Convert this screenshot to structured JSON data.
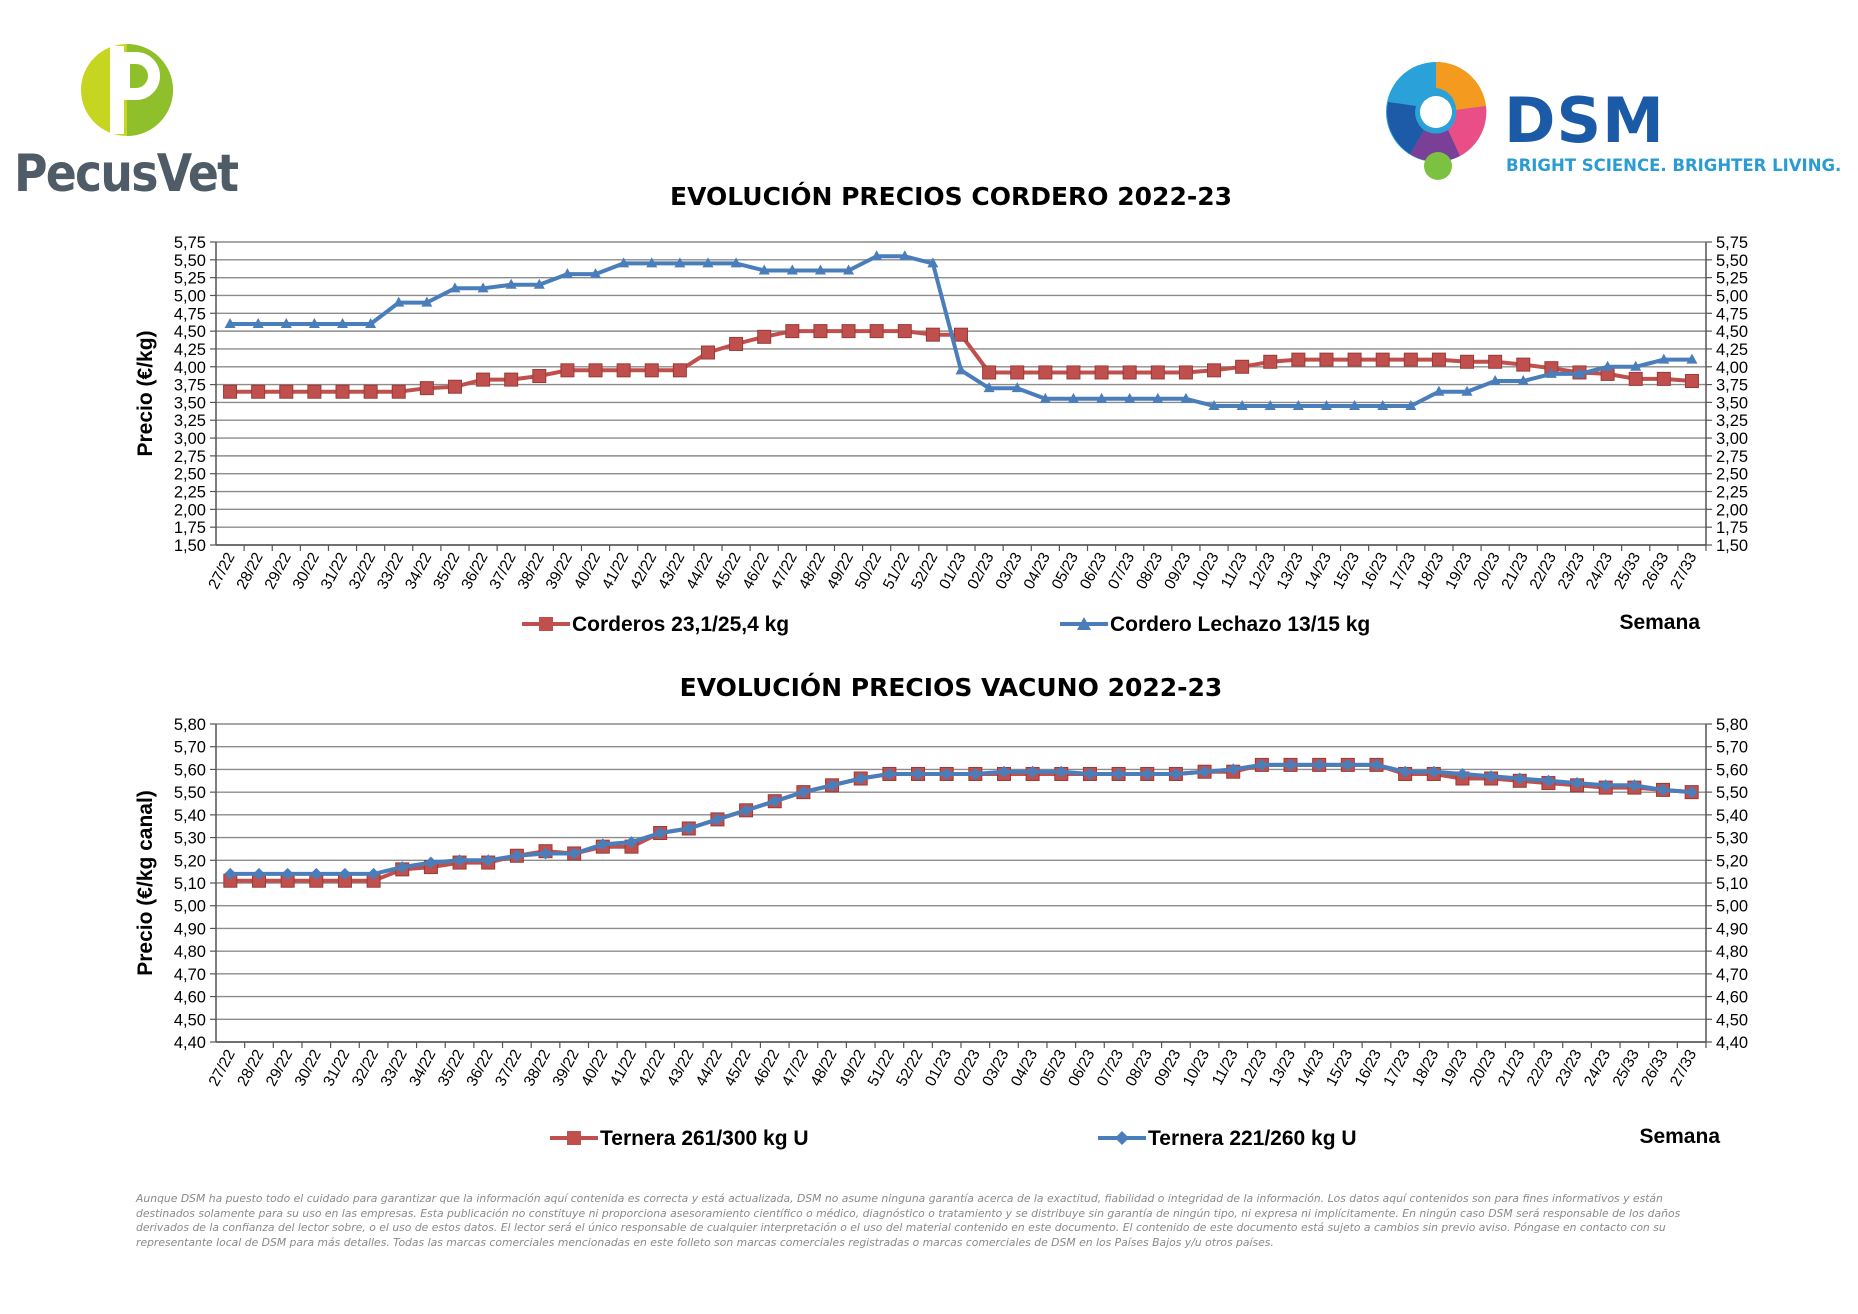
{
  "logos": {
    "left_text": "PecusVet",
    "right_name": "DSM",
    "right_tagline": "BRIGHT SCIENCE. BRIGHTER LIVING."
  },
  "colors": {
    "red_series": "#c0504d",
    "blue_series": "#4a7ebb",
    "grid": "#7f7f7f",
    "text": "#000000"
  },
  "chart_data": [
    {
      "type": "line",
      "title": "EVOLUCIÓN PRECIOS CORDERO 2022-23",
      "ylabel": "Precio (€/kg)",
      "xlabel": "Semana",
      "ylim": [
        1.5,
        5.75
      ],
      "ytick_step": 0.25,
      "yticks": [
        "5,75",
        "5,50",
        "5,25",
        "5,00",
        "4,75",
        "4,50",
        "4,25",
        "4,00",
        "3,75",
        "3,50",
        "3,25",
        "3,00",
        "2,75",
        "2,50",
        "2,25",
        "2,00",
        "1,75",
        "1,50"
      ],
      "grid": true,
      "legend": "bottom",
      "categories": [
        "27/22",
        "28/22",
        "29/22",
        "30/22",
        "31/22",
        "32/22",
        "33/22",
        "34/22",
        "35/22",
        "36/22",
        "37/22",
        "38/22",
        "39/22",
        "40/22",
        "41/22",
        "42/22",
        "43/22",
        "44/22",
        "45/22",
        "46/22",
        "47/22",
        "48/22",
        "49/22",
        "50/22",
        "51/22",
        "52/22",
        "01/23",
        "02/23",
        "03/23",
        "04/23",
        "05/23",
        "06/23",
        "07/23",
        "08/23",
        "09/23",
        "10/23",
        "11/23",
        "12/23",
        "13/23",
        "14/23",
        "15/23",
        "16/23",
        "17/23",
        "18/23",
        "19/23",
        "20/23",
        "21/23",
        "22/23",
        "23/23",
        "24/23",
        "25/33",
        "26/33",
        "27/33"
      ],
      "series": [
        {
          "name": "Corderos 23,1/25,4 kg",
          "color": "#c0504d",
          "marker": "square",
          "values": [
            3.65,
            3.65,
            3.65,
            3.65,
            3.65,
            3.65,
            3.65,
            3.7,
            3.72,
            3.82,
            3.82,
            3.87,
            3.95,
            3.95,
            3.95,
            3.95,
            3.95,
            4.2,
            4.32,
            4.42,
            4.5,
            4.5,
            4.5,
            4.5,
            4.5,
            4.45,
            4.45,
            3.92,
            3.92,
            3.92,
            3.92,
            3.92,
            3.92,
            3.92,
            3.92,
            3.95,
            4.0,
            4.07,
            4.1,
            4.1,
            4.1,
            4.1,
            4.1,
            4.1,
            4.07,
            4.07,
            4.03,
            3.98,
            3.92,
            3.9,
            3.83,
            3.83,
            3.8
          ]
        },
        {
          "name": "Cordero Lechazo 13/15 kg",
          "color": "#4a7ebb",
          "marker": "triangle",
          "values": [
            4.6,
            4.6,
            4.6,
            4.6,
            4.6,
            4.6,
            4.9,
            4.9,
            5.1,
            5.1,
            5.15,
            5.15,
            5.3,
            5.3,
            5.45,
            5.45,
            5.45,
            5.45,
            5.45,
            5.35,
            5.35,
            5.35,
            5.35,
            5.55,
            5.55,
            5.45,
            3.95,
            3.7,
            3.7,
            3.55,
            3.55,
            3.55,
            3.55,
            3.55,
            3.55,
            3.45,
            3.45,
            3.45,
            3.45,
            3.45,
            3.45,
            3.45,
            3.45,
            3.65,
            3.65,
            3.8,
            3.8,
            3.9,
            3.9,
            4.0,
            4.0,
            4.1,
            4.1
          ]
        }
      ]
    },
    {
      "type": "line",
      "title": "EVOLUCIÓN PRECIOS VACUNO 2022-23",
      "ylabel": "Precio (€/kg canal)",
      "xlabel": "Semana",
      "ylim": [
        4.4,
        5.8
      ],
      "ytick_step": 0.1,
      "yticks": [
        "5,80",
        "5,70",
        "5,60",
        "5,50",
        "5,40",
        "5,30",
        "5,20",
        "5,10",
        "5,00",
        "4,90",
        "4,80",
        "4,70",
        "4,60",
        "4,50",
        "4,40"
      ],
      "grid": true,
      "legend": "bottom",
      "categories": [
        "27/22",
        "28/22",
        "29/22",
        "30/22",
        "31/22",
        "32/22",
        "33/22",
        "34/22",
        "35/22",
        "36/22",
        "37/22",
        "38/22",
        "39/22",
        "40/22",
        "41/22",
        "42/22",
        "43/22",
        "44/22",
        "45/22",
        "46/22",
        "47/22",
        "48/22",
        "49/22",
        "51/22",
        "52/22",
        "01/23",
        "02/23",
        "03/23",
        "04/23",
        "05/23",
        "06/23",
        "07/23",
        "08/23",
        "09/23",
        "10/23",
        "11/23",
        "12/23",
        "13/23",
        "14/23",
        "15/23",
        "16/23",
        "17/23",
        "18/23",
        "19/23",
        "20/23",
        "21/23",
        "22/23",
        "23/23",
        "24/23",
        "25/33",
        "26/33",
        "27/33"
      ],
      "series": [
        {
          "name": "Ternera 261/300 kg U",
          "color": "#c0504d",
          "marker": "square",
          "values": [
            5.11,
            5.11,
            5.11,
            5.11,
            5.11,
            5.11,
            5.16,
            5.17,
            5.19,
            5.19,
            5.22,
            5.24,
            5.23,
            5.26,
            5.26,
            5.32,
            5.34,
            5.38,
            5.42,
            5.46,
            5.5,
            5.53,
            5.56,
            5.58,
            5.58,
            5.58,
            5.58,
            5.58,
            5.58,
            5.58,
            5.58,
            5.58,
            5.58,
            5.58,
            5.59,
            5.59,
            5.62,
            5.62,
            5.62,
            5.62,
            5.62,
            5.58,
            5.58,
            5.56,
            5.56,
            5.55,
            5.54,
            5.53,
            5.52,
            5.52,
            5.51,
            5.5
          ]
        },
        {
          "name": "Ternera 221/260 kg U",
          "color": "#4a7ebb",
          "marker": "diamond",
          "values": [
            5.14,
            5.14,
            5.14,
            5.14,
            5.14,
            5.14,
            5.17,
            5.19,
            5.2,
            5.2,
            5.22,
            5.23,
            5.23,
            5.27,
            5.28,
            5.32,
            5.34,
            5.38,
            5.42,
            5.46,
            5.5,
            5.53,
            5.56,
            5.58,
            5.58,
            5.58,
            5.58,
            5.59,
            5.59,
            5.59,
            5.58,
            5.58,
            5.58,
            5.58,
            5.59,
            5.6,
            5.62,
            5.62,
            5.62,
            5.62,
            5.62,
            5.59,
            5.59,
            5.58,
            5.57,
            5.56,
            5.55,
            5.54,
            5.53,
            5.53,
            5.51,
            5.5
          ]
        }
      ]
    }
  ],
  "disclaimer": "Aunque DSM ha puesto todo el cuidado para garantizar que la información aquí contenida es correcta y está actualizada, DSM no asume ninguna garantía acerca de la exactitud, fiabilidad o integridad de la información. Los datos aquí contenidos son para fines informativos y están destinados solamente para su uso en las empresas. Esta publicación no constituye ni proporciona asesoramiento científico o médico, diagnóstico o tratamiento y se distribuye sin garantía de ningún tipo, ni expresa ni implícitamente. En ningún caso DSM será responsable de los daños derivados de la confianza del lector sobre, o el uso de estos datos. El lector será el único responsable de cualquier interpretación o el uso del material contenido en este documento. El contenido de este documento está sujeto a cambios sin previo aviso. Póngase en contacto con su representante local de DSM para más detalles. Todas las marcas comerciales mencionadas en este folleto son marcas comerciales registradas o marcas comerciales de DSM en los Países Bajos y/u otros países."
}
